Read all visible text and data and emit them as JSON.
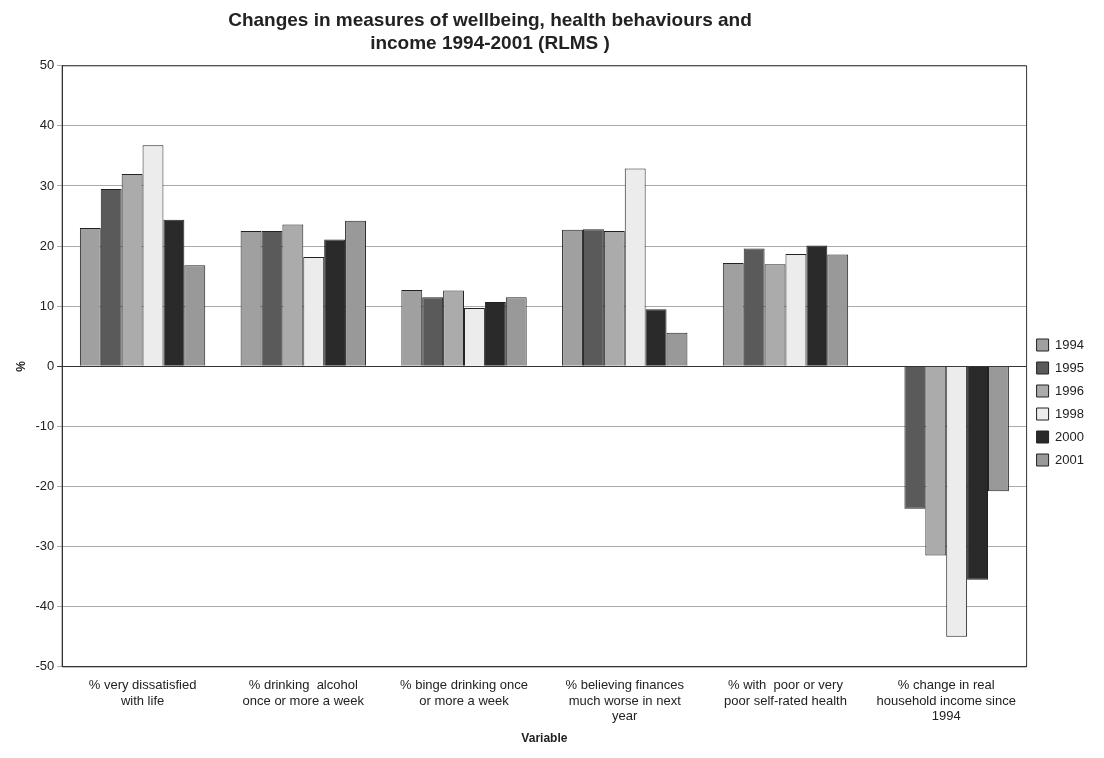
{
  "chart_data": {
    "type": "bar",
    "title": "Changes in measures of wellbeing, health behaviours and income 1994-2001 (RLMS )",
    "xlabel": "Variable",
    "ylabel": "%",
    "categories": [
      "% very dissatisfied with life",
      "% drinking  alcohol once or more a week",
      "% binge drinking once or more a week",
      "% believing finances much worse in next year",
      "% with  poor or very poor self-rated health",
      "% change in real household income since 1994"
    ],
    "series": [
      {
        "name": "1994",
        "color": "#a0a0a0",
        "values": [
          23,
          22.5,
          12.7,
          22.7,
          17.2,
          0
        ]
      },
      {
        "name": "1995",
        "color": "#5a5a5a",
        "values": [
          29.5,
          22.5,
          11.5,
          22.8,
          19.6,
          -23.7
        ]
      },
      {
        "name": "1996",
        "color": "#ababab",
        "values": [
          32,
          23.6,
          12.6,
          22.5,
          17,
          -31.5
        ]
      },
      {
        "name": "1998",
        "color": "#ececec",
        "values": [
          36.8,
          18.2,
          9.7,
          32.9,
          18.7,
          -45
        ]
      },
      {
        "name": "2000",
        "color": "#2a2a2a",
        "values": [
          24.4,
          21.1,
          10.7,
          9.5,
          20.1,
          -35.5
        ]
      },
      {
        "name": "2001",
        "color": "#999999",
        "values": [
          16.8,
          24.2,
          11.5,
          5.6,
          18.6,
          -20.8
        ]
      }
    ],
    "ylim": [
      -50,
      50
    ],
    "yticks": [
      -50,
      -40,
      -30,
      -20,
      -10,
      0,
      10,
      20,
      30,
      40,
      50
    ],
    "grid": "y",
    "legend": "right"
  }
}
